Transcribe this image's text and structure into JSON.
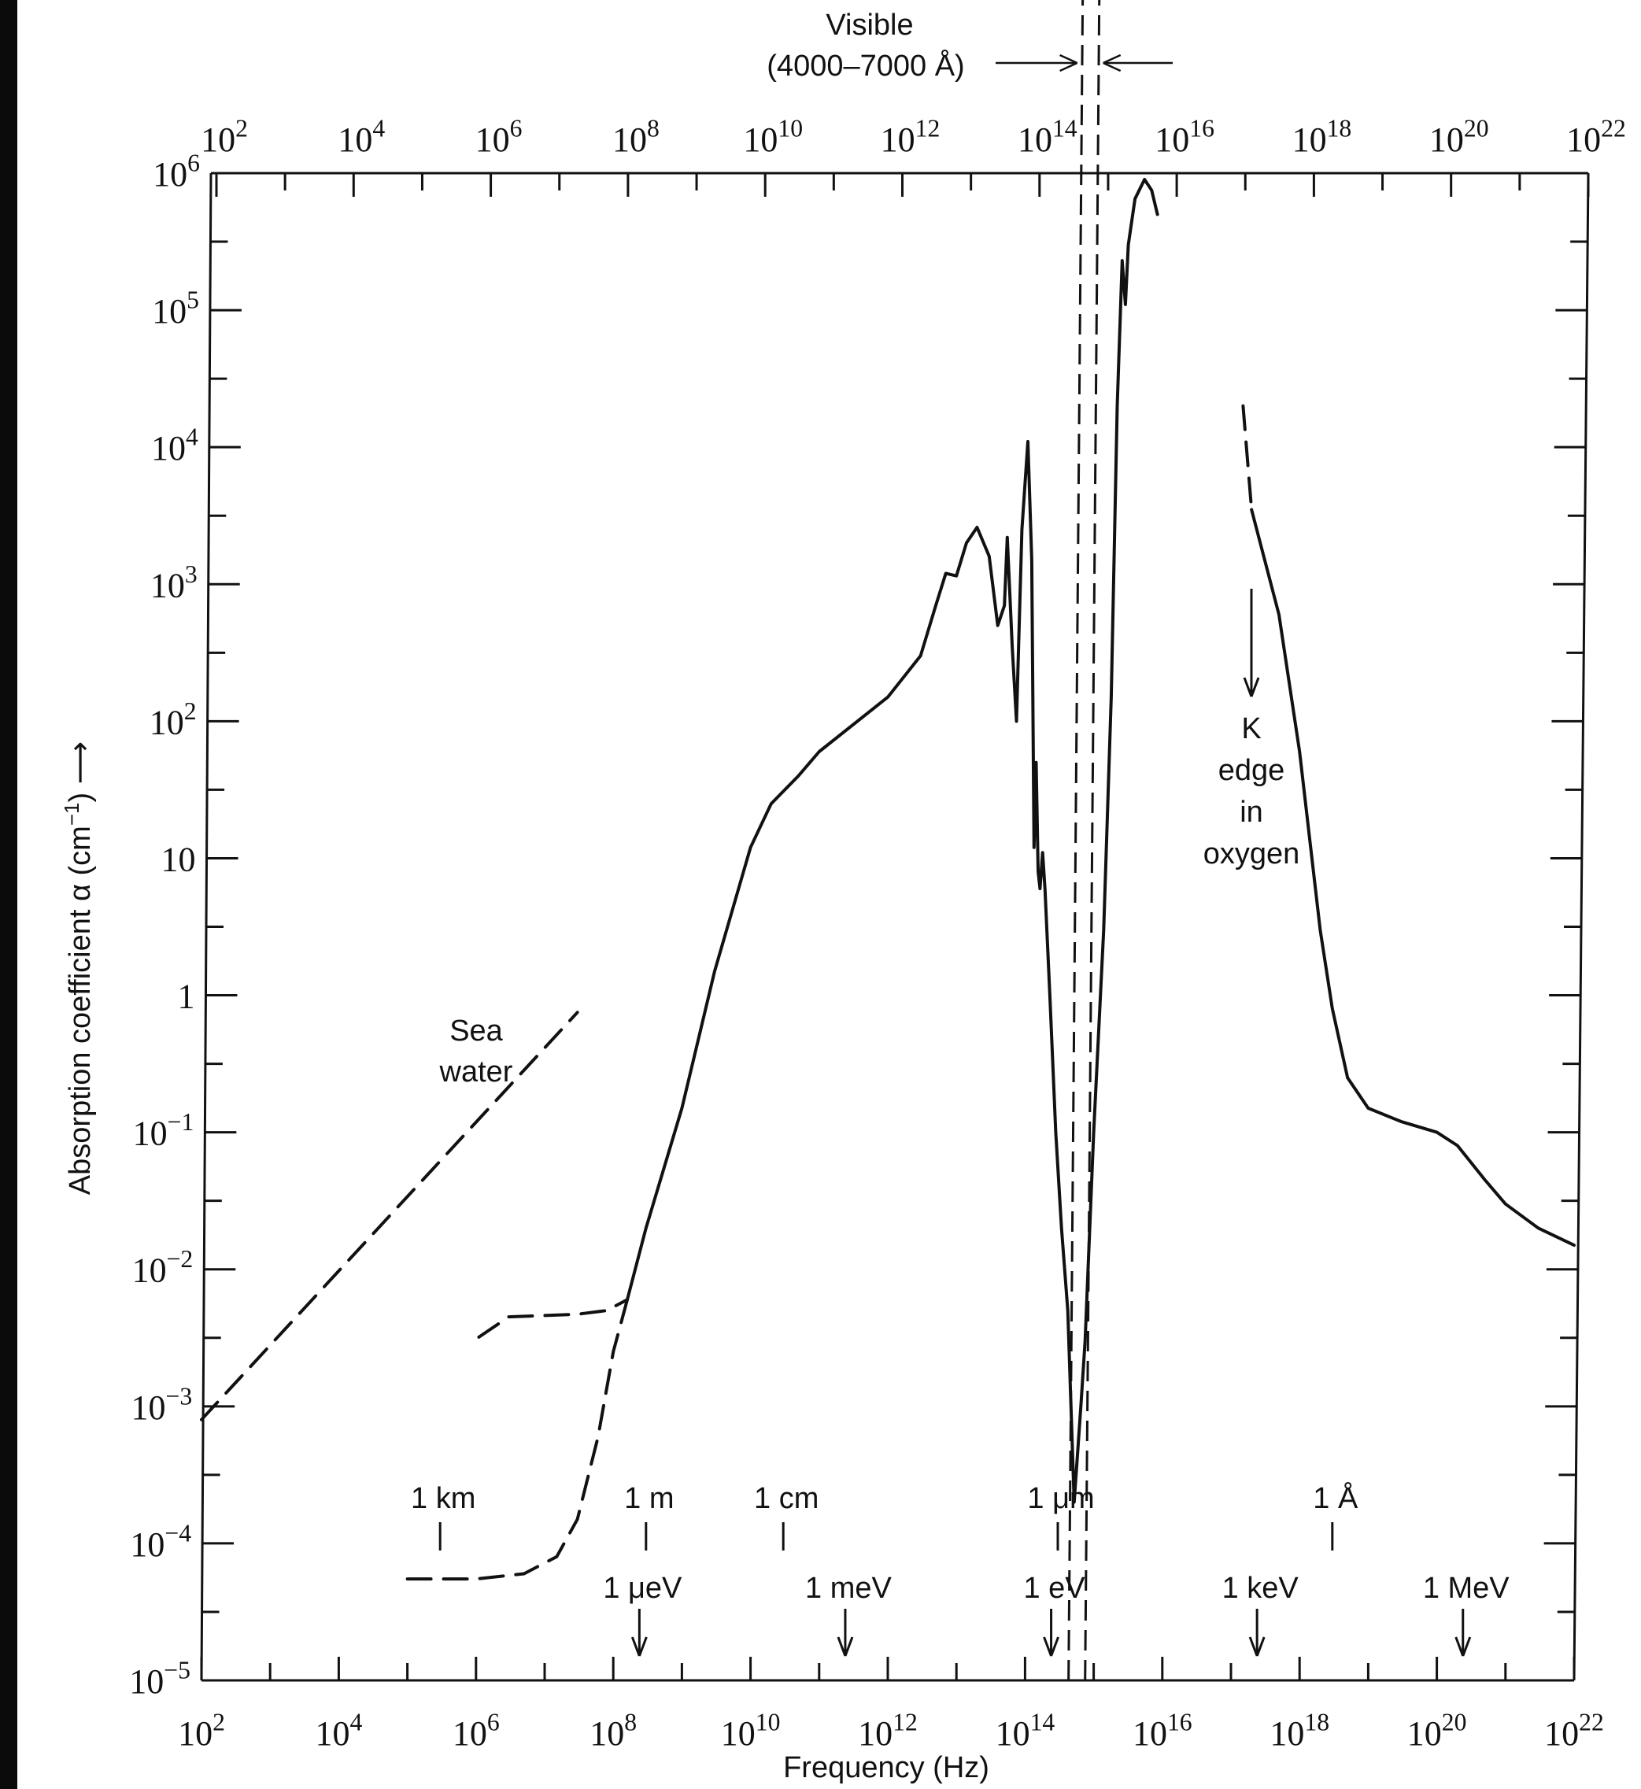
{
  "chart_data": {
    "type": "line",
    "xlabel": "Frequency (Hz)",
    "ylabel_main": "Absorption coefficient α (cm",
    "ylabel_sup": "−1",
    "ylabel_tail": ") ⟶",
    "x_scale": "log",
    "y_scale": "log",
    "xlim": [
      100,
      1e+22
    ],
    "ylim": [
      1e-05,
      1000000.0
    ],
    "x_tick_labels": [
      {
        "x": 100,
        "base": "10",
        "exp": "2"
      },
      {
        "x": 10000.0,
        "base": "10",
        "exp": "4"
      },
      {
        "x": 1000000.0,
        "base": "10",
        "exp": "6"
      },
      {
        "x": 100000000.0,
        "base": "10",
        "exp": "8"
      },
      {
        "x": 10000000000.0,
        "base": "10",
        "exp": "10"
      },
      {
        "x": 1000000000000.0,
        "base": "10",
        "exp": "12"
      },
      {
        "x": 100000000000000.0,
        "base": "10",
        "exp": "14"
      },
      {
        "x": 1e+16,
        "base": "10",
        "exp": "16"
      },
      {
        "x": 1e+18,
        "base": "10",
        "exp": "18"
      },
      {
        "x": 1e+20,
        "base": "10",
        "exp": "20"
      },
      {
        "x": 1e+22,
        "base": "10",
        "exp": "22"
      }
    ],
    "y_tick_labels": [
      {
        "y": 1e-05,
        "base": "10",
        "exp": "−5"
      },
      {
        "y": 0.0001,
        "base": "10",
        "exp": "−4"
      },
      {
        "y": 0.001,
        "base": "10",
        "exp": "−3"
      },
      {
        "y": 0.01,
        "base": "10",
        "exp": "−2"
      },
      {
        "y": 0.1,
        "base": "10",
        "exp": "−1"
      },
      {
        "y": 1,
        "base": "1",
        "exp": ""
      },
      {
        "y": 10,
        "base": "10",
        "exp": ""
      },
      {
        "y": 100,
        "base": "10",
        "exp": "2"
      },
      {
        "y": 1000,
        "base": "10",
        "exp": "3"
      },
      {
        "y": 10000.0,
        "base": "10",
        "exp": "4"
      },
      {
        "y": 100000.0,
        "base": "10",
        "exp": "5"
      },
      {
        "y": 1000000.0,
        "base": "10",
        "exp": "6"
      }
    ],
    "series": [
      {
        "style": "solid",
        "points": [
          [
            160000000.0,
            0.006
          ],
          [
            300000000.0,
            0.02
          ],
          [
            1000000000.0,
            0.15
          ],
          [
            3000000000.0,
            1.5
          ],
          [
            10000000000.0,
            12
          ],
          [
            20000000000.0,
            25
          ],
          [
            50000000000.0,
            40
          ],
          [
            100000000000.0,
            60
          ],
          [
            1000000000000.0,
            150
          ],
          [
            3000000000000.0,
            300
          ],
          [
            5000000000000.0,
            700
          ],
          [
            7000000000000.0,
            1200
          ],
          [
            10000000000000.0,
            1150
          ],
          [
            14000000000000.0,
            2000
          ],
          [
            20000000000000.0,
            2600
          ],
          [
            30000000000000.0,
            1600
          ],
          [
            40000000000000.0,
            500
          ],
          [
            50000000000000.0,
            700
          ],
          [
            55000000000000.0,
            2200
          ],
          [
            65000000000000.0,
            350
          ],
          [
            75000000000000.0,
            100
          ],
          [
            90000000000000.0,
            2500
          ],
          [
            110000000000000.0,
            11000
          ],
          [
            125000000000000.0,
            1500
          ],
          [
            135000000000000.0,
            12
          ],
          [
            145000000000000.0,
            50
          ],
          [
            155000000000000.0,
            8
          ],
          [
            165000000000000.0,
            6
          ],
          [
            180000000000000.0,
            11
          ],
          [
            195000000000000.0,
            6
          ],
          [
            230000000000000.0,
            1
          ],
          [
            280000000000000.0,
            0.1
          ],
          [
            340000000000000.0,
            0.02
          ],
          [
            420000000000000.0,
            0.005
          ],
          [
            520000000000000.0,
            0.0002
          ],
          [
            650000000000000.0,
            0.001
          ],
          [
            750000000000000.0,
            0.003
          ],
          [
            1000000000000000.0,
            0.1
          ],
          [
            1400000000000000.0,
            3
          ],
          [
            1800000000000000.0,
            150
          ],
          [
            2200000000000000.0,
            20000
          ],
          [
            2600000000000000.0,
            230000
          ],
          [
            2900000000000000.0,
            110000
          ],
          [
            3200000000000000.0,
            300000
          ],
          [
            4000000000000000.0,
            650000
          ],
          [
            5500000000000000.0,
            900000
          ],
          [
            7000000000000000.0,
            750000
          ],
          [
            8500000000000000.0,
            500000
          ]
        ]
      },
      {
        "style": "solid",
        "points": [
          [
            2e+17,
            3500
          ],
          [
            5e+17,
            600
          ],
          [
            1e+18,
            60
          ],
          [
            2e+18,
            3
          ],
          [
            3e+18,
            0.8
          ],
          [
            5e+18,
            0.25
          ],
          [
            1e+19,
            0.15
          ],
          [
            3e+19,
            0.12
          ],
          [
            1e+20,
            0.1
          ],
          [
            2e+20,
            0.08
          ],
          [
            5e+20,
            0.045
          ],
          [
            1e+21,
            0.03
          ],
          [
            3e+21,
            0.02
          ],
          [
            1e+22,
            0.015
          ]
        ]
      },
      {
        "style": "dashed",
        "points": [
          [
            1.5e+17,
            20000
          ],
          [
            2e+17,
            3500
          ]
        ]
      },
      {
        "style": "dashed",
        "points": [
          [
            1100000.0,
            0.0032
          ],
          [
            3000000.0,
            0.0045
          ],
          [
            10000000.0,
            0.0046
          ],
          [
            30000000.0,
            0.0047
          ],
          [
            80000000.0,
            0.005
          ],
          [
            160000000.0,
            0.006
          ]
        ]
      },
      {
        "style": "dashed",
        "points": [
          [
            100000.0,
            5.5e-05
          ],
          [
            1000000.0,
            5.5e-05
          ],
          [
            5000000.0,
            6e-05
          ],
          [
            15000000.0,
            8e-05
          ],
          [
            30000000.0,
            0.00015
          ],
          [
            60000000.0,
            0.0006
          ],
          [
            100000000.0,
            0.0025
          ],
          [
            160000000.0,
            0.006
          ]
        ]
      },
      {
        "style": "dashed",
        "points": [
          [
            100,
            0.0008
          ],
          [
            30000000.0,
            0.75
          ]
        ]
      }
    ],
    "visible_band": {
      "x_low": 430000000000000.0,
      "x_high": 750000000000000.0
    },
    "wavelength_marks": [
      {
        "label": "1 km",
        "x": 300000.0
      },
      {
        "label": "1 m",
        "x": 300000000.0
      },
      {
        "label": "1 cm",
        "x": 30000000000.0
      },
      {
        "label": "1 μm",
        "x": 300000000000000.0
      },
      {
        "label": "1 Å",
        "x": 3e+18
      }
    ],
    "energy_marks": [
      {
        "label": "1 μeV",
        "x": 240000000.0
      },
      {
        "label": "1 meV",
        "x": 240000000000.0
      },
      {
        "label": "1 eV",
        "x": 240000000000000.0
      },
      {
        "label": "1 keV",
        "x": 2.4e+17
      },
      {
        "label": "1 MeV",
        "x": 2.4e+20
      }
    ],
    "annotations": {
      "sea_water": [
        "Sea",
        "water"
      ],
      "k_edge": [
        "K",
        "edge",
        "in",
        "oxygen"
      ],
      "visible_line1": "Visible",
      "visible_line2": "(4000–7000 Å)"
    }
  }
}
